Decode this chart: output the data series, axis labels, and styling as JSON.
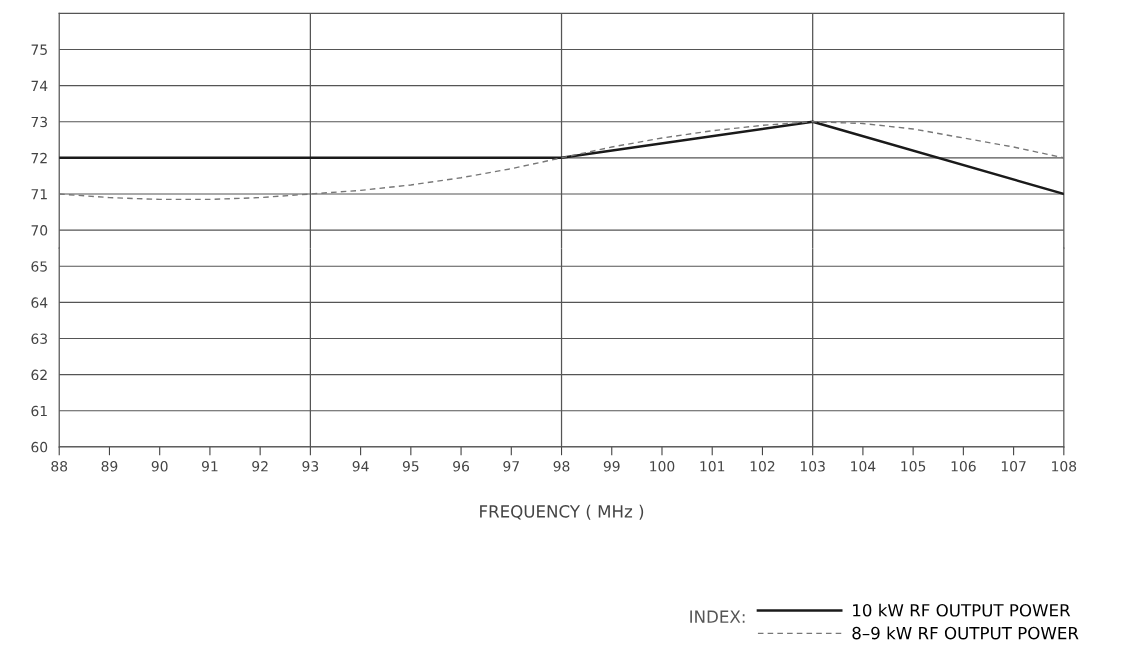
{
  "chart_data": [
    {
      "type": "line",
      "legend_title": "INDEX:",
      "tick_labels": "y",
      "x": [
        88,
        89,
        90,
        91,
        92,
        93,
        94,
        95,
        96,
        97,
        98,
        99,
        100,
        101,
        102,
        103,
        104,
        105,
        106,
        107,
        108
      ],
      "series": [
        {
          "name": "10 kW RF OUTPUT POWER",
          "color": "#1a1a1a",
          "line_style": "solid",
          "x": [
            88,
            98,
            103,
            108
          ],
          "values": [
            72,
            72,
            73,
            71
          ]
        },
        {
          "name": "8–9 kW RF OUTPUT POWER",
          "color": "#777777",
          "line_style": "dashed",
          "values": [
            71,
            70.9,
            70.85,
            70.85,
            70.9,
            71,
            71.1,
            71.25,
            71.45,
            71.7,
            72,
            72.3,
            72.55,
            72.75,
            72.9,
            73,
            72.95,
            72.8,
            72.55,
            72.3,
            72
          ]
        }
      ],
      "xlim": [
        88,
        108
      ],
      "ylim": [
        69.5,
        76
      ],
      "yticks": [
        70,
        71,
        72,
        73,
        74,
        75
      ],
      "grid": "y",
      "legend": "bottom right",
      "ref_lines": [
        {
          "axis": "x",
          "value": 93
        },
        {
          "axis": "x",
          "value": 98
        },
        {
          "axis": "x",
          "value": 103
        }
      ]
    },
    {
      "type": "line",
      "xlabel": "FREQUENCY ( MHz )",
      "xlim": [
        88,
        108
      ],
      "xticks": [
        88,
        89,
        90,
        91,
        92,
        93,
        94,
        95,
        96,
        97,
        98,
        99,
        100,
        101,
        102,
        103,
        104,
        105,
        106,
        107,
        108
      ],
      "ylim": [
        60,
        65.5
      ],
      "yticks": [
        60,
        61,
        62,
        63,
        64,
        65
      ],
      "grid": "y",
      "ref_lines": [
        {
          "axis": "x",
          "value": 93
        },
        {
          "axis": "x",
          "value": 98
        },
        {
          "axis": "x",
          "value": 103
        }
      ]
    }
  ]
}
